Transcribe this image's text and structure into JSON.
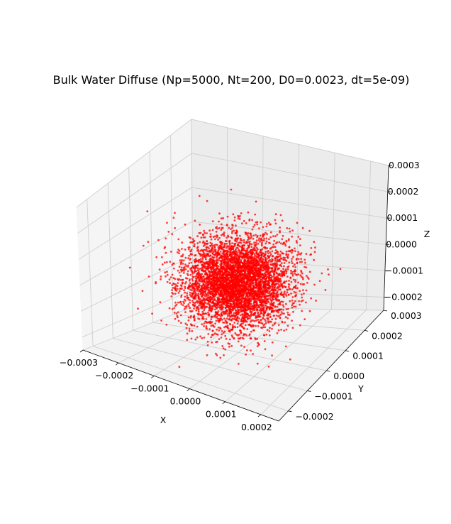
{
  "chart_data": {
    "type": "scatter",
    "projection": "3d",
    "title": "Bulk Water Diffuse (Np=5000, Nt=200, D0=0.0023, dt=5e-09)",
    "xlabel": "X",
    "ylabel": "Y",
    "zlabel": "Z",
    "xlim": [
      -0.0003,
      0.00025
    ],
    "ylim": [
      -0.00025,
      0.0003
    ],
    "zlim": [
      -0.00025,
      0.0003
    ],
    "x_ticks": [
      "−0.0003",
      "−0.0002",
      "−0.0001",
      "0.0000",
      "0.0001",
      "0.0002"
    ],
    "y_ticks": [
      "−0.0002",
      "−0.0001",
      "0.0000",
      "0.0001",
      "0.0002",
      "0.0003"
    ],
    "z_ticks": [
      "−0.0002",
      "−0.0001",
      "0.0000",
      "0.0001",
      "0.0002",
      "0.0003"
    ],
    "series": [
      {
        "n_points": 5000,
        "distribution": "isotropic gaussian",
        "center": [
          0,
          0,
          0
        ],
        "std": 6.8e-05,
        "color": "#ff0000",
        "marker": "point"
      }
    ],
    "grid": true,
    "pane_color": "#f2f2f2"
  }
}
